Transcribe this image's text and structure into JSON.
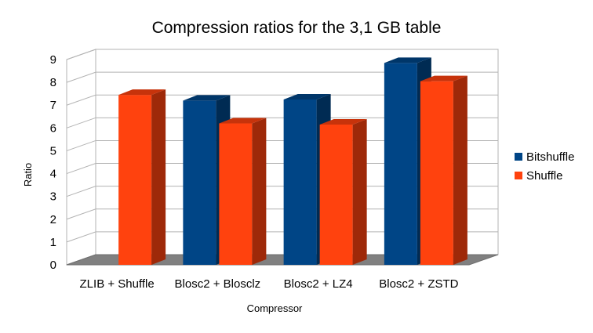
{
  "chart_data": {
    "type": "bar",
    "title": "Compression ratios for the 3,1 GB table",
    "xlabel": "Compressor",
    "ylabel": "Ratio",
    "ylim": [
      0,
      9
    ],
    "yticks": [
      0,
      1,
      2,
      3,
      4,
      5,
      6,
      7,
      8,
      9
    ],
    "grid": true,
    "legend_position": "right",
    "categories": [
      "ZLIB + Shuffle",
      "Blosc2 + Blosclz",
      "Blosc2 + LZ4",
      "Blosc2 + ZSTD"
    ],
    "series": [
      {
        "name": "Bitshuffle",
        "color": "#004586",
        "values": [
          null,
          7.2,
          7.25,
          8.85
        ]
      },
      {
        "name": "Shuffle",
        "color": "#ff420e",
        "values": [
          7.45,
          6.2,
          6.15,
          8.05
        ]
      }
    ]
  }
}
